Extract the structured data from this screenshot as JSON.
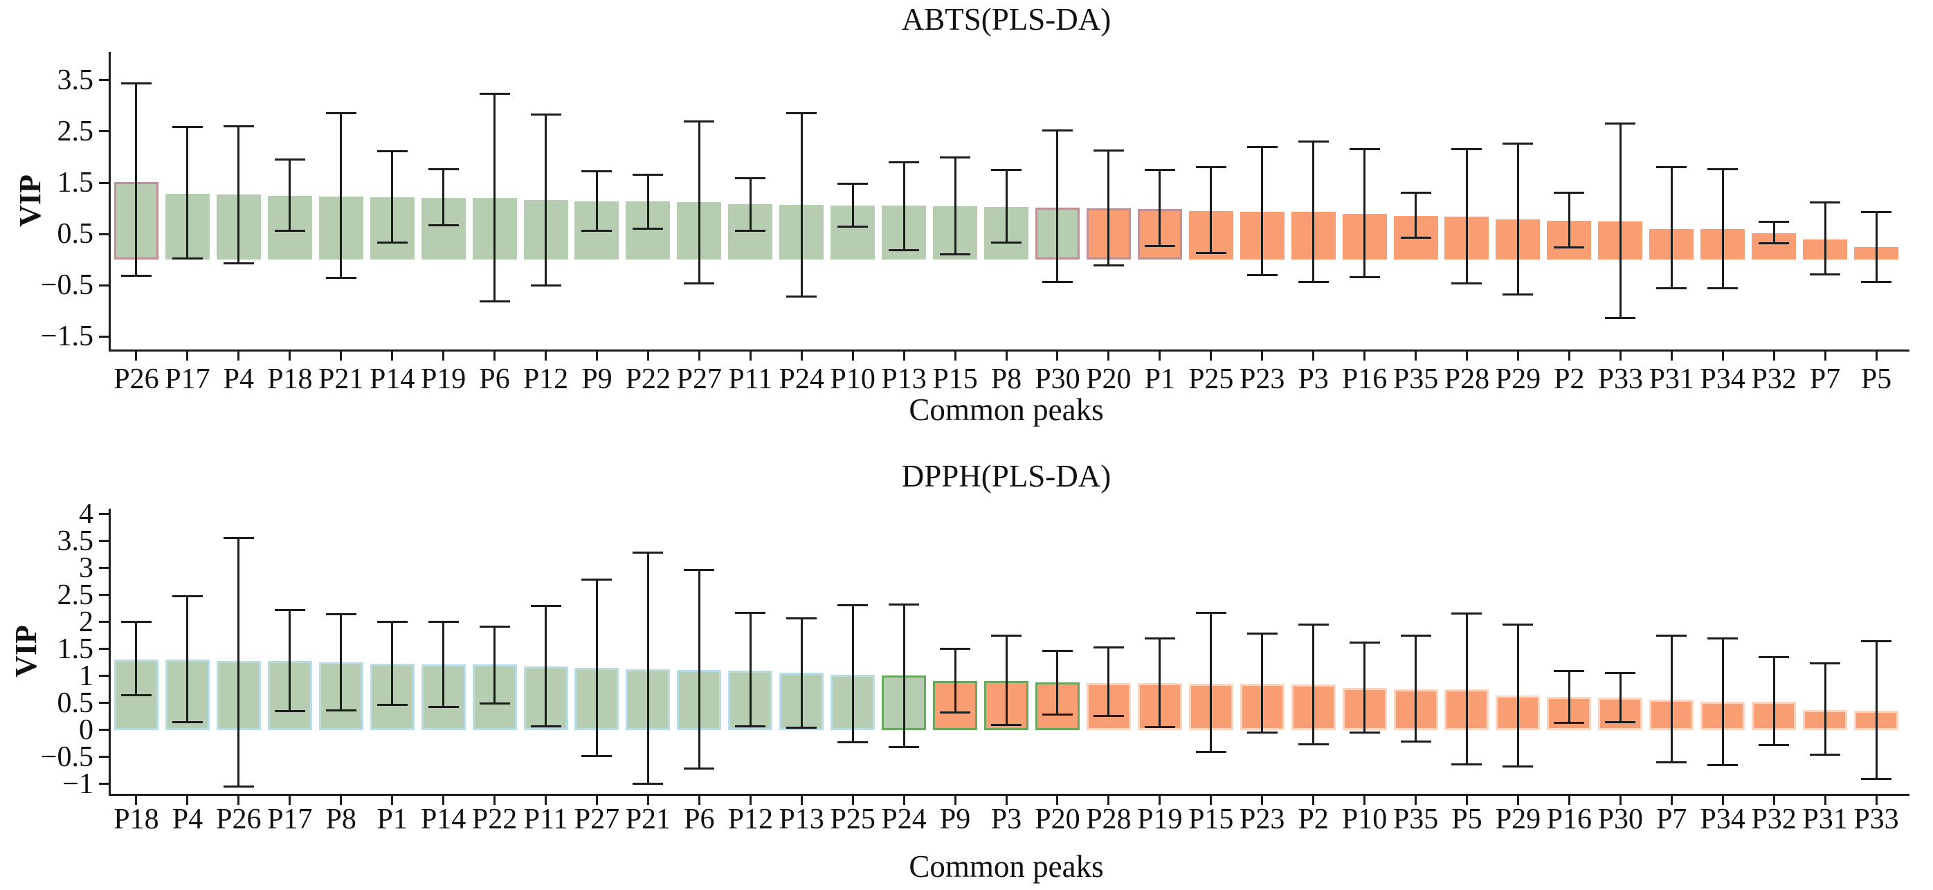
{
  "figure_title": "",
  "chart_data": [
    {
      "type": "bar",
      "title": "ABTS(PLS-DA)",
      "xlabel": "Common peaks",
      "ylabel": "VIP",
      "ylim": [
        -1.75,
        4.05
      ],
      "grid": false,
      "legend": "none",
      "yticks": [
        {
          "value": 3.5,
          "label": "3.5"
        },
        {
          "value": 2.5,
          "label": "2.5"
        },
        {
          "value": 1.5,
          "label": "1.5"
        },
        {
          "value": 0.5,
          "label": "0.5"
        },
        {
          "value": -0.5,
          "label": "−0.5"
        },
        {
          "value": -1.5,
          "label": "−1.5"
        }
      ],
      "categories": [
        "P26",
        "P17",
        "P4",
        "P18",
        "P21",
        "P14",
        "P19",
        "P6",
        "P12",
        "P9",
        "P22",
        "P27",
        "P11",
        "P24",
        "P10",
        "P13",
        "P15",
        "P8",
        "P30",
        "P20",
        "P1",
        "P25",
        "P23",
        "P3",
        "P16",
        "P35",
        "P28",
        "P29",
        "P2",
        "P33",
        "P31",
        "P34",
        "P32",
        "P7",
        "P5"
      ],
      "values": [
        1.52,
        1.28,
        1.27,
        1.25,
        1.23,
        1.22,
        1.21,
        1.2,
        1.17,
        1.14,
        1.13,
        1.12,
        1.08,
        1.07,
        1.06,
        1.05,
        1.04,
        1.03,
        1.01,
        1.0,
        0.99,
        0.95,
        0.93,
        0.93,
        0.89,
        0.85,
        0.84,
        0.78,
        0.76,
        0.75,
        0.6,
        0.6,
        0.52,
        0.4,
        0.25
      ],
      "err_low": [
        -0.31,
        0.03,
        -0.07,
        0.57,
        -0.36,
        0.34,
        0.67,
        -0.81,
        -0.5,
        0.56,
        0.6,
        -0.46,
        0.56,
        -0.72,
        0.65,
        0.18,
        0.1,
        0.34,
        -0.43,
        -0.11,
        0.26,
        0.13,
        -0.3,
        -0.43,
        -0.34,
        0.43,
        -0.46,
        -0.68,
        0.24,
        -1.14,
        -0.55,
        -0.56,
        0.32,
        -0.28,
        -0.43
      ],
      "err_high": [
        3.43,
        2.58,
        2.6,
        1.95,
        2.85,
        2.12,
        1.77,
        3.23,
        2.83,
        1.72,
        1.66,
        2.7,
        1.59,
        2.85,
        1.48,
        1.9,
        1.99,
        1.75,
        2.52,
        2.13,
        1.75,
        1.81,
        2.19,
        2.3,
        2.15,
        1.31,
        2.16,
        2.26,
        1.31,
        2.65,
        1.81,
        1.76,
        0.74,
        1.11,
        0.93
      ],
      "green_count": 19,
      "outlined_bars": [
        "P26",
        "P30",
        "P20",
        "P1"
      ],
      "colors": {
        "green_fill": "#b7cdb2",
        "orange_fill": "#f99d72",
        "outline": "#c18f96",
        "axis": "#1c1c1c",
        "error_bar": "#1c1c1c"
      }
    },
    {
      "type": "bar",
      "title": "DPPH(PLS-DA)",
      "xlabel": "Common peaks",
      "ylabel": "VIP",
      "ylim": [
        -1.18,
        4.1
      ],
      "grid": false,
      "legend": "none",
      "yticks": [
        {
          "value": 4,
          "label": "4"
        },
        {
          "value": 3.5,
          "label": "3.5"
        },
        {
          "value": 3,
          "label": "3"
        },
        {
          "value": 2.5,
          "label": "2.5"
        },
        {
          "value": 2,
          "label": "2"
        },
        {
          "value": 1.5,
          "label": "1.5"
        },
        {
          "value": 1,
          "label": "1"
        },
        {
          "value": 0.5,
          "label": "0.5"
        },
        {
          "value": 0,
          "label": "0"
        },
        {
          "value": -0.5,
          "label": "−0.5"
        },
        {
          "value": -1,
          "label": "−1"
        }
      ],
      "categories": [
        "P18",
        "P4",
        "P26",
        "P17",
        "P8",
        "P1",
        "P14",
        "P22",
        "P11",
        "P27",
        "P21",
        "P6",
        "P12",
        "P13",
        "P25",
        "P24",
        "P9",
        "P3",
        "P20",
        "P28",
        "P19",
        "P15",
        "P23",
        "P2",
        "P10",
        "P35",
        "P5",
        "P29",
        "P16",
        "P30",
        "P7",
        "P34",
        "P32",
        "P31",
        "P33"
      ],
      "values": [
        1.31,
        1.3,
        1.28,
        1.28,
        1.25,
        1.23,
        1.22,
        1.22,
        1.18,
        1.15,
        1.13,
        1.12,
        1.1,
        1.06,
        1.03,
        1.01,
        0.91,
        0.91,
        0.88,
        0.87,
        0.87,
        0.86,
        0.86,
        0.84,
        0.78,
        0.76,
        0.75,
        0.64,
        0.62,
        0.6,
        0.56,
        0.53,
        0.53,
        0.37,
        0.36
      ],
      "err_low": [
        0.64,
        0.15,
        -1.05,
        0.35,
        0.37,
        0.47,
        0.43,
        0.49,
        0.07,
        -0.48,
        -1.0,
        -0.71,
        0.07,
        0.04,
        -0.23,
        -0.31,
        0.32,
        0.09,
        0.29,
        0.26,
        0.06,
        -0.4,
        -0.04,
        -0.26,
        -0.04,
        -0.21,
        -0.63,
        -0.67,
        0.14,
        0.15,
        -0.6,
        -0.65,
        -0.28,
        -0.46,
        -0.9
      ],
      "err_high": [
        2.0,
        2.48,
        3.55,
        2.22,
        2.14,
        2.01,
        2.0,
        1.92,
        2.3,
        2.79,
        3.29,
        2.96,
        2.17,
        2.07,
        2.31,
        2.32,
        1.51,
        1.75,
        1.47,
        1.53,
        1.7,
        2.17,
        1.79,
        1.95,
        1.62,
        1.75,
        2.16,
        1.95,
        1.1,
        1.06,
        1.75,
        1.7,
        1.35,
        1.23,
        1.65
      ],
      "green_count": 16,
      "outlined_bars": [
        "P24",
        "P9",
        "P3",
        "P20"
      ],
      "colors": {
        "green_fill": "#b7cdb2",
        "orange_fill": "#f99d72",
        "outline": "#68a95f",
        "green_edge": "#b8dde8",
        "orange_edge": "#fcd3bd",
        "axis": "#1c1c1c",
        "error_bar": "#1c1c1c"
      }
    }
  ]
}
